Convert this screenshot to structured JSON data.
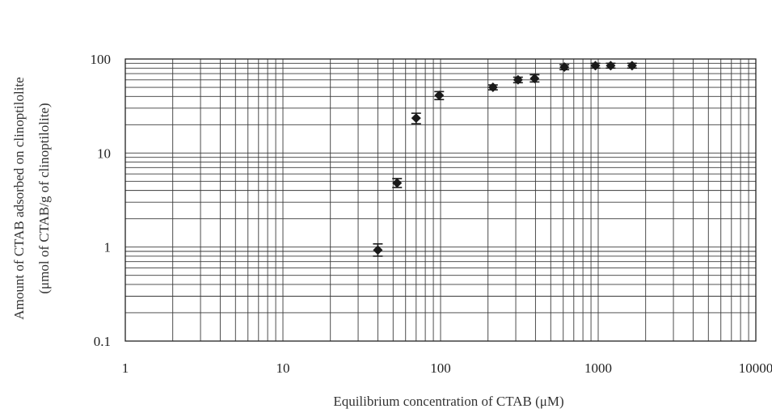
{
  "chart_data": {
    "type": "scatter",
    "xlabel": "Equilibrium concentration of CTAB (μM)",
    "ylabel_line1": "Amount of CTAB adsorbed on clinoptilolite",
    "ylabel_line2": "(μmol of CTAB/g of clinoptilolite)",
    "x_scale": "log",
    "y_scale": "log",
    "xlim": [
      1,
      10000
    ],
    "ylim": [
      0.1,
      100
    ],
    "x_ticks": [
      1,
      10,
      100,
      1000,
      10000
    ],
    "x_tick_labels": [
      "1",
      "10",
      "100",
      "1000",
      "10000"
    ],
    "y_ticks": [
      0.1,
      1,
      10,
      100
    ],
    "y_tick_labels": [
      "0.1",
      "1",
      "10",
      "100"
    ],
    "grid": true,
    "legend": "none",
    "series": [
      {
        "marker": "diamond",
        "color": "#1a1a1a",
        "points": [
          {
            "x": 40,
            "y": 0.93,
            "err": [
              0.8,
              1.08
            ]
          },
          {
            "x": 53,
            "y": 4.8,
            "err": [
              4.3,
              5.35
            ]
          },
          {
            "x": 70,
            "y": 23.5,
            "err": [
              20.5,
              26.5
            ]
          },
          {
            "x": 98,
            "y": 41,
            "err": [
              37,
              45
            ]
          },
          {
            "x": 215,
            "y": 50,
            "err": [
              47,
              53
            ]
          },
          {
            "x": 310,
            "y": 60,
            "err": [
              56,
              64
            ]
          },
          {
            "x": 395,
            "y": 62,
            "err": [
              57,
              68
            ]
          },
          {
            "x": 610,
            "y": 82,
            "err": [
              77,
              87
            ]
          },
          {
            "x": 960,
            "y": 85,
            "err": [
              80,
              90
            ]
          },
          {
            "x": 1200,
            "y": 85,
            "err": [
              80,
              90
            ]
          },
          {
            "x": 1640,
            "y": 85,
            "err": [
              80,
              90
            ]
          }
        ]
      }
    ]
  }
}
